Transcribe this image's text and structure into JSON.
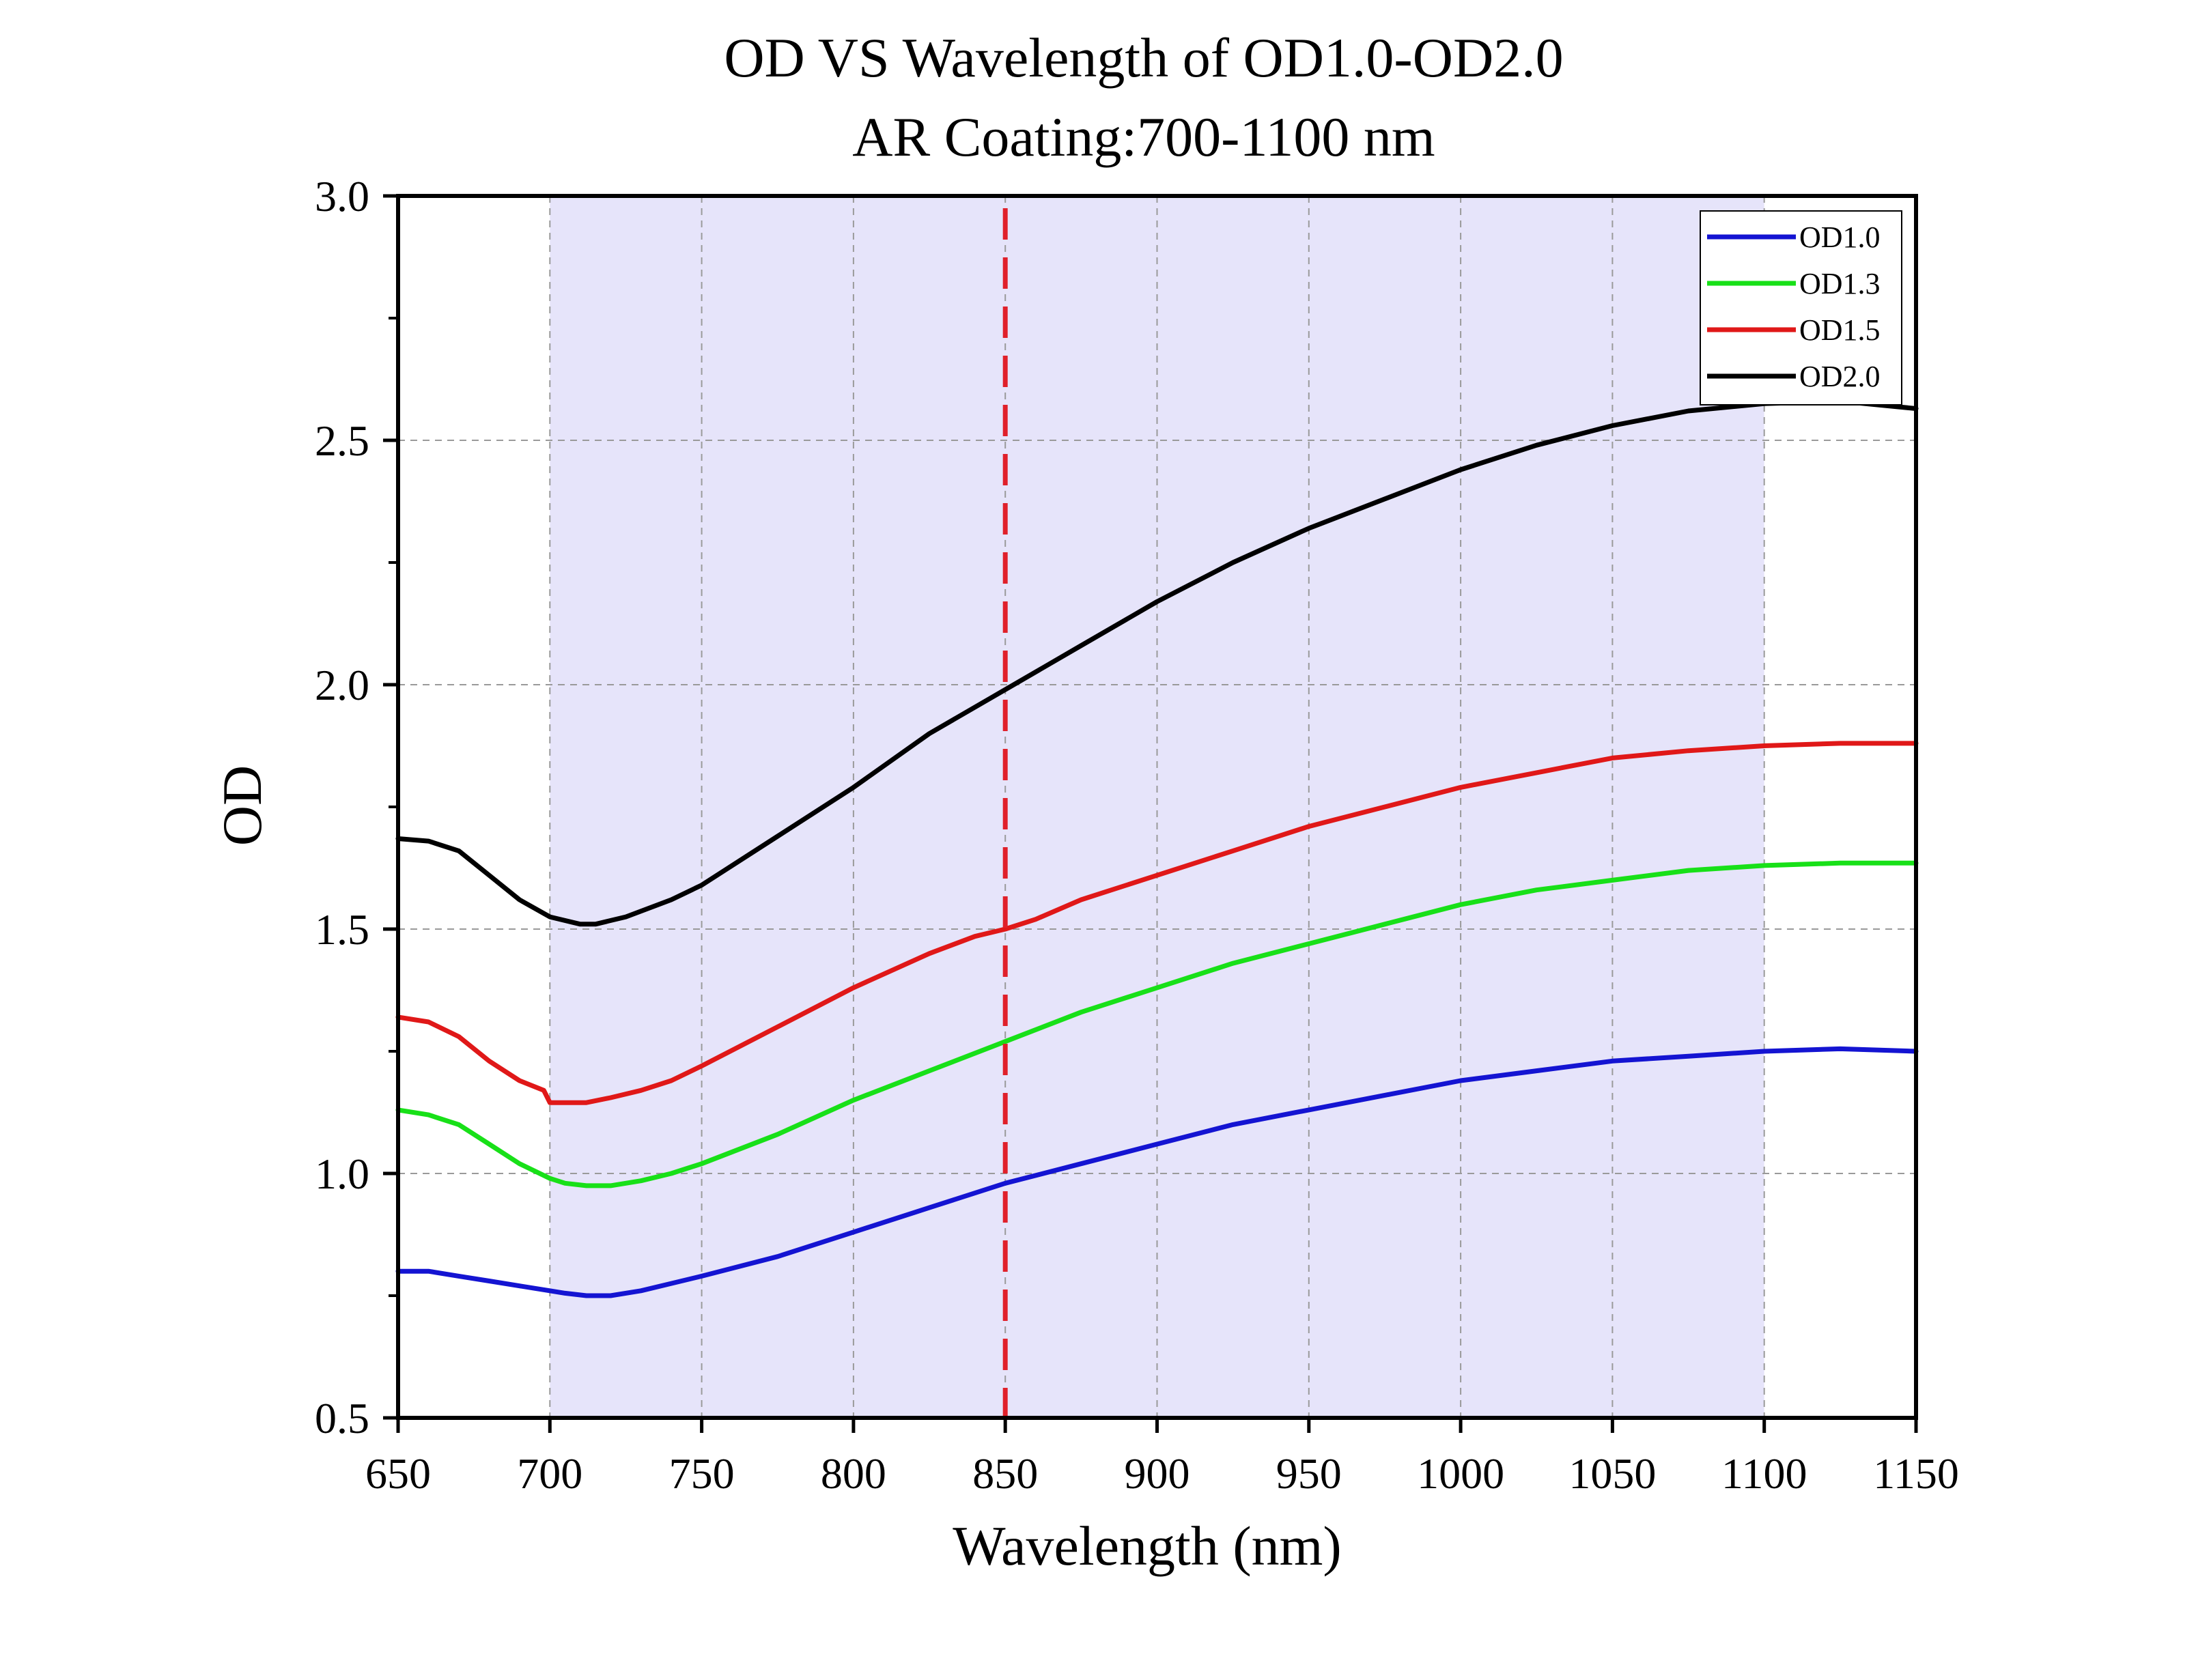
{
  "chart_data": {
    "type": "line",
    "title": "OD VS Wavelength of OD1.0-OD2.0",
    "subtitle": "AR Coating:700-1100 nm",
    "xlabel": "Wavelength (nm)",
    "ylabel": "OD",
    "xlim": [
      650,
      1150
    ],
    "ylim": [
      0.5,
      3.0
    ],
    "x_ticks": [
      "650",
      "700",
      "750",
      "800",
      "850",
      "900",
      "950",
      "1000",
      "1050",
      "1100",
      "1150"
    ],
    "y_ticks": [
      "0.5",
      "1.0",
      "1.5",
      "2.0",
      "2.5",
      "3.0"
    ],
    "grid": true,
    "legend_position": "top-right",
    "shaded_region": {
      "x_start": 700,
      "x_end": 1100,
      "color": "#e6e4fa"
    },
    "reference_line": {
      "x": 850,
      "color": "#e0202a",
      "style": "dashed"
    },
    "series": [
      {
        "name": "OD1.0",
        "color": "#1414d2",
        "points": [
          [
            650,
            0.8
          ],
          [
            660,
            0.8
          ],
          [
            670,
            0.79
          ],
          [
            680,
            0.78
          ],
          [
            690,
            0.77
          ],
          [
            700,
            0.76
          ],
          [
            705,
            0.755
          ],
          [
            712,
            0.75
          ],
          [
            720,
            0.75
          ],
          [
            730,
            0.76
          ],
          [
            740,
            0.775
          ],
          [
            750,
            0.79
          ],
          [
            775,
            0.83
          ],
          [
            800,
            0.88
          ],
          [
            825,
            0.93
          ],
          [
            850,
            0.98
          ],
          [
            875,
            1.02
          ],
          [
            900,
            1.06
          ],
          [
            925,
            1.1
          ],
          [
            950,
            1.13
          ],
          [
            975,
            1.16
          ],
          [
            1000,
            1.19
          ],
          [
            1025,
            1.21
          ],
          [
            1050,
            1.23
          ],
          [
            1075,
            1.24
          ],
          [
            1100,
            1.25
          ],
          [
            1125,
            1.255
          ],
          [
            1150,
            1.25
          ]
        ]
      },
      {
        "name": "OD1.3",
        "color": "#18e018",
        "points": [
          [
            650,
            1.13
          ],
          [
            660,
            1.12
          ],
          [
            670,
            1.1
          ],
          [
            680,
            1.06
          ],
          [
            690,
            1.02
          ],
          [
            700,
            0.99
          ],
          [
            705,
            0.98
          ],
          [
            712,
            0.975
          ],
          [
            720,
            0.975
          ],
          [
            730,
            0.985
          ],
          [
            740,
            1.0
          ],
          [
            750,
            1.02
          ],
          [
            775,
            1.08
          ],
          [
            800,
            1.15
          ],
          [
            825,
            1.21
          ],
          [
            850,
            1.27
          ],
          [
            875,
            1.33
          ],
          [
            900,
            1.38
          ],
          [
            925,
            1.43
          ],
          [
            950,
            1.47
          ],
          [
            975,
            1.51
          ],
          [
            1000,
            1.55
          ],
          [
            1025,
            1.58
          ],
          [
            1050,
            1.6
          ],
          [
            1075,
            1.62
          ],
          [
            1100,
            1.63
          ],
          [
            1125,
            1.635
          ],
          [
            1150,
            1.635
          ]
        ]
      },
      {
        "name": "OD1.5",
        "color": "#e01818",
        "points": [
          [
            650,
            1.32
          ],
          [
            660,
            1.31
          ],
          [
            670,
            1.28
          ],
          [
            680,
            1.23
          ],
          [
            690,
            1.19
          ],
          [
            698,
            1.17
          ],
          [
            700,
            1.145
          ],
          [
            705,
            1.145
          ],
          [
            712,
            1.145
          ],
          [
            720,
            1.155
          ],
          [
            730,
            1.17
          ],
          [
            740,
            1.19
          ],
          [
            750,
            1.22
          ],
          [
            775,
            1.3
          ],
          [
            800,
            1.38
          ],
          [
            825,
            1.45
          ],
          [
            840,
            1.485
          ],
          [
            850,
            1.5
          ],
          [
            860,
            1.52
          ],
          [
            875,
            1.56
          ],
          [
            900,
            1.61
          ],
          [
            925,
            1.66
          ],
          [
            950,
            1.71
          ],
          [
            975,
            1.75
          ],
          [
            1000,
            1.79
          ],
          [
            1025,
            1.82
          ],
          [
            1050,
            1.85
          ],
          [
            1075,
            1.865
          ],
          [
            1100,
            1.875
          ],
          [
            1125,
            1.88
          ],
          [
            1150,
            1.88
          ]
        ]
      },
      {
        "name": "OD2.0",
        "color": "#000000",
        "points": [
          [
            650,
            1.685
          ],
          [
            660,
            1.68
          ],
          [
            670,
            1.66
          ],
          [
            680,
            1.61
          ],
          [
            690,
            1.56
          ],
          [
            700,
            1.525
          ],
          [
            710,
            1.51
          ],
          [
            715,
            1.51
          ],
          [
            725,
            1.525
          ],
          [
            740,
            1.56
          ],
          [
            750,
            1.59
          ],
          [
            775,
            1.69
          ],
          [
            800,
            1.79
          ],
          [
            825,
            1.9
          ],
          [
            850,
            1.99
          ],
          [
            875,
            2.08
          ],
          [
            900,
            2.17
          ],
          [
            925,
            2.25
          ],
          [
            950,
            2.32
          ],
          [
            975,
            2.38
          ],
          [
            1000,
            2.44
          ],
          [
            1025,
            2.49
          ],
          [
            1050,
            2.53
          ],
          [
            1075,
            2.56
          ],
          [
            1100,
            2.575
          ],
          [
            1125,
            2.58
          ],
          [
            1150,
            2.565
          ]
        ]
      }
    ]
  }
}
